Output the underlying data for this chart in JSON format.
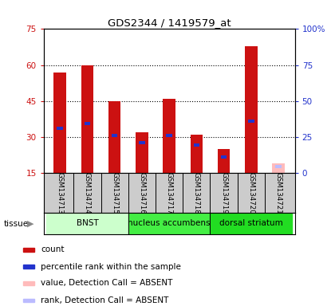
{
  "title": "GDS2344 / 1419579_at",
  "samples": [
    "GSM134713",
    "GSM134714",
    "GSM134715",
    "GSM134716",
    "GSM134717",
    "GSM134718",
    "GSM134719",
    "GSM134720",
    "GSM134721"
  ],
  "count_values": [
    57,
    60,
    45,
    32,
    46,
    31,
    25,
    68,
    0
  ],
  "rank_values": [
    33,
    35,
    30,
    27,
    30,
    26,
    21,
    36,
    0
  ],
  "absent_value": [
    0,
    0,
    0,
    0,
    0,
    0,
    0,
    0,
    19
  ],
  "absent_rank": [
    0,
    0,
    0,
    0,
    0,
    0,
    0,
    0,
    17
  ],
  "ylim_left": [
    15,
    75
  ],
  "ylim_right": [
    0,
    100
  ],
  "yticks_left": [
    15,
    30,
    45,
    60,
    75
  ],
  "ytick_labels_left": [
    "15",
    "30",
    "45",
    "60",
    "75"
  ],
  "y2ticks": [
    0,
    25,
    50,
    75,
    100
  ],
  "y2tick_labels": [
    "0",
    "25",
    "50",
    "75",
    "100%"
  ],
  "count_color": "#cc1111",
  "rank_color": "#2233cc",
  "absent_count_color": "#ffbbbb",
  "absent_rank_color": "#bbbbff",
  "bar_width": 0.45,
  "rank_bar_width": 0.22,
  "tissue_groups": [
    {
      "label": "BNST",
      "start": 0,
      "end": 3,
      "color": "#ccffcc"
    },
    {
      "label": "nucleus accumbens",
      "start": 3,
      "end": 6,
      "color": "#44ee44"
    },
    {
      "label": "dorsal striatum",
      "start": 6,
      "end": 9,
      "color": "#22dd22"
    }
  ],
  "legend_items": [
    {
      "color": "#cc1111",
      "label": "count"
    },
    {
      "color": "#2233cc",
      "label": "percentile rank within the sample"
    },
    {
      "color": "#ffbbbb",
      "label": "value, Detection Call = ABSENT"
    },
    {
      "color": "#bbbbff",
      "label": "rank, Detection Call = ABSENT"
    }
  ]
}
